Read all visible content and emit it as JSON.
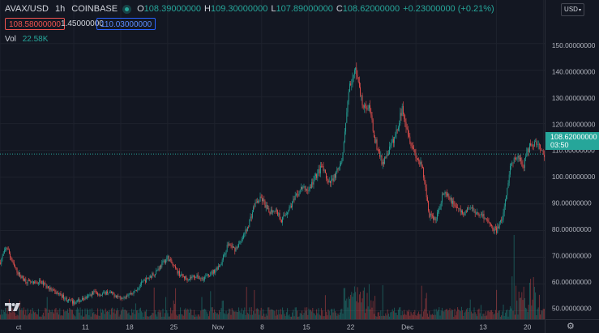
{
  "symbol": {
    "pair": "AVAX/USD",
    "interval": "1h",
    "exchange": "COINBASE",
    "o_label": "O",
    "o": "108.39000000",
    "h_label": "H",
    "h": "109.30000000",
    "l_label": "L",
    "l": "107.89000000",
    "c_label": "C",
    "c": "108.62000000",
    "change": "+0.23000000 (+0.21%)"
  },
  "trade": {
    "sell": "108.58000000",
    "spread": "1.45000000",
    "buy": "110.03000000"
  },
  "volume": {
    "label": "Vol",
    "value": "22.58K"
  },
  "currency_label": "USD",
  "last_price": {
    "value": "108.62000000",
    "countdown": "03:50"
  },
  "colors": {
    "background": "#131722",
    "up": "#26a69a",
    "down": "#ef5350",
    "buy": "#2962ff",
    "grid": "#1e222d"
  },
  "icons": {
    "logo": "tradingview-logo-icon",
    "settings": "gear-icon",
    "currency_dropdown": "chevron-down-icon",
    "status": "market-open-dot-icon"
  },
  "chart_data": {
    "type": "candlestick",
    "y_ticks": [
      50,
      60,
      70,
      80,
      90,
      100,
      110,
      120,
      130,
      140,
      150
    ],
    "y_tick_labels": [
      "50.00000000",
      "60.00000000",
      "70.00000000",
      "80.00000000",
      "90.00000000",
      "100.00000000",
      "110.00000000",
      "120.00000000",
      "130.00000000",
      "140.00000000",
      "150.00000000"
    ],
    "x_tick_labels": [
      "ct",
      "11",
      "18",
      "25",
      "Nov",
      "8",
      "15",
      "22",
      "Dec",
      "13",
      "20"
    ],
    "x_tick_days": [
      0,
      11,
      18,
      25,
      32,
      39,
      46,
      53,
      62,
      74,
      81
    ],
    "ylim": [
      46.5,
      157.5
    ],
    "xlim_days": [
      0,
      81.2
    ],
    "path_days": [
      0,
      1,
      2,
      3,
      4,
      5,
      6,
      7,
      8,
      9,
      10,
      11,
      12,
      13,
      14,
      15,
      16,
      17,
      18,
      19,
      20,
      21,
      22,
      23,
      24,
      25,
      26,
      27,
      28,
      29,
      30,
      31,
      32,
      33,
      34,
      35,
      36,
      37,
      38,
      39,
      40,
      41,
      42,
      43,
      44,
      45,
      46,
      47,
      48,
      49,
      50,
      51,
      52,
      53,
      54,
      55,
      56,
      57,
      58,
      59,
      60,
      61,
      62,
      63,
      64,
      65,
      66,
      67,
      68,
      69,
      70,
      71,
      72,
      73,
      74,
      75,
      76,
      77,
      78,
      79,
      80,
      81
    ],
    "path_closes": [
      68,
      74,
      67,
      63,
      61,
      60,
      61,
      59,
      57,
      56,
      54,
      53,
      54,
      55,
      57,
      56,
      57,
      56,
      55,
      56,
      57,
      60,
      62,
      64,
      67,
      70,
      66,
      63,
      62,
      63,
      62,
      63,
      65,
      68,
      75,
      73,
      76,
      82,
      90,
      92,
      87,
      88,
      84,
      88,
      92,
      96,
      95,
      100,
      104,
      97,
      101,
      105,
      133,
      140,
      128,
      126,
      113,
      105,
      110,
      116,
      126,
      115,
      108,
      103,
      86,
      84,
      94,
      92,
      89,
      86,
      89,
      87,
      86,
      82,
      80,
      85,
      103,
      108,
      104,
      112,
      113,
      108.62
    ],
    "volume_peak_label": ""
  }
}
